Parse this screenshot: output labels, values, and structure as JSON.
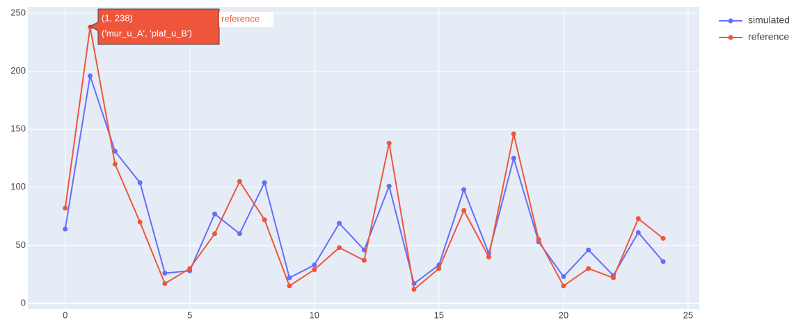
{
  "chart_data": {
    "type": "line",
    "x": [
      0,
      1,
      2,
      3,
      4,
      5,
      6,
      7,
      8,
      9,
      10,
      11,
      12,
      13,
      14,
      15,
      16,
      17,
      18,
      19,
      20,
      21,
      22,
      23,
      24
    ],
    "series": [
      {
        "name": "simulated",
        "color": "#636efa",
        "values": [
          64,
          196,
          131,
          104,
          26,
          28,
          77,
          60,
          104,
          22,
          33,
          69,
          46,
          101,
          17,
          33,
          98,
          43,
          125,
          53,
          23,
          46,
          24,
          61,
          36
        ]
      },
      {
        "name": "reference",
        "color": "#ef553b",
        "values": [
          82,
          238,
          120,
          70,
          17,
          30,
          60,
          105,
          72,
          15,
          29,
          48,
          37,
          138,
          12,
          30,
          80,
          40,
          146,
          55,
          15,
          30,
          22,
          73,
          56
        ]
      }
    ],
    "xlim": [
      -1.5,
      25.45
    ],
    "ylim": [
      -4.8,
      255.4
    ],
    "xticks": [
      0,
      5,
      10,
      15,
      20,
      25
    ],
    "yticks": [
      0,
      50,
      100,
      150,
      200,
      250
    ],
    "grid": true,
    "legend": "right",
    "tooltip": {
      "lines": [
        "(1, 238)",
        "('mur_u_A', 'plaf_u_B')"
      ],
      "name": "reference"
    }
  }
}
